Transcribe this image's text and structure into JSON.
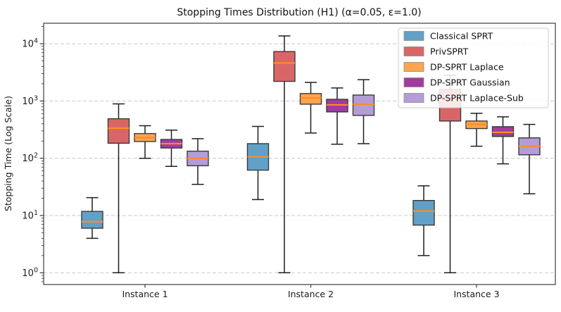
{
  "chart_data": {
    "type": "boxplot",
    "title": "Stopping Times Distribution (H1) (α=0.05, ε=1.0)",
    "ylabel": "Stopping Time (Log Scale)",
    "yscale": "log",
    "ylim": [
      0.62,
      21000
    ],
    "grid": "dashed horizontal at decades",
    "legend_position": "upper right",
    "y_tick_base": "10",
    "y_tick_exponents": [
      "0",
      "1",
      "2",
      "3",
      "4"
    ],
    "categories": [
      "Instance 1",
      "Instance 2",
      "Instance 3"
    ],
    "style": {
      "median_color": "#ff8c1e",
      "box_edge_color": "#3a3a3a",
      "whisker_color": "#1f1f1f",
      "grid_color": "#c9c9c9",
      "background": "#ffffff"
    },
    "series": [
      {
        "name": "Classical SPRT",
        "color": "#62A0C8",
        "boxes": [
          {
            "whislo": 4,
            "q1": 6,
            "med": 7.8,
            "q3": 11.8,
            "whishi": 20.5
          },
          {
            "whislo": 19,
            "q1": 62,
            "med": 106,
            "q3": 180,
            "whishi": 360
          },
          {
            "whislo": 2,
            "q1": 6.8,
            "med": 12,
            "q3": 18.3,
            "whishi": 33
          }
        ]
      },
      {
        "name": "PrivSPRT",
        "color": "#D96666",
        "boxes": [
          {
            "whislo": 1,
            "q1": 183,
            "med": 335,
            "q3": 490,
            "whishi": 890
          },
          {
            "whislo": 1,
            "q1": 2200,
            "med": 4600,
            "q3": 7300,
            "whishi": 13700
          },
          {
            "whislo": 1,
            "q1": 447,
            "med": 1000,
            "q3": 1590,
            "whishi": 2800
          }
        ]
      },
      {
        "name": "DP-SPRT Laplace",
        "color": "#FFA44F",
        "boxes": [
          {
            "whislo": 100,
            "q1": 196,
            "med": 230,
            "q3": 270,
            "whishi": 370
          },
          {
            "whislo": 276,
            "q1": 880,
            "med": 1130,
            "q3": 1350,
            "whishi": 2110
          },
          {
            "whislo": 162,
            "q1": 330,
            "med": 390,
            "q3": 447,
            "whishi": 610
          }
        ]
      },
      {
        "name": "DP-SPRT Gaussian",
        "color": "#A13C9E",
        "boxes": [
          {
            "whislo": 72,
            "q1": 151,
            "med": 180,
            "q3": 213,
            "whishi": 310
          },
          {
            "whislo": 176,
            "q1": 645,
            "med": 855,
            "q3": 1070,
            "whishi": 1690
          },
          {
            "whislo": 80,
            "q1": 240,
            "med": 284,
            "q3": 356,
            "whishi": 530
          }
        ]
      },
      {
        "name": "DP-SPRT Laplace-Sub",
        "color": "#B49CD9",
        "boxes": [
          {
            "whislo": 35,
            "q1": 74,
            "med": 100,
            "q3": 133,
            "whishi": 220
          },
          {
            "whislo": 180,
            "q1": 560,
            "med": 880,
            "q3": 1270,
            "whishi": 2360
          },
          {
            "whislo": 24,
            "q1": 115,
            "med": 162,
            "q3": 227,
            "whishi": 390
          }
        ]
      }
    ]
  }
}
